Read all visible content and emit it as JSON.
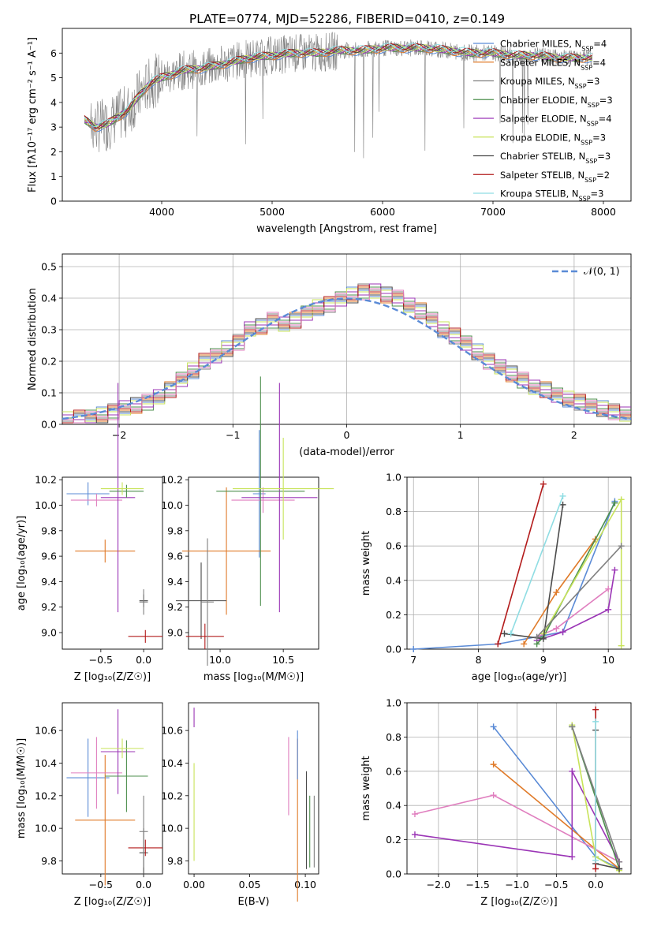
{
  "figure": {
    "title": "PLATE=0774, MJD=52286, FIBERID=0410, z=0.149"
  },
  "colors": {
    "data_spectrum": "#808080",
    "models": [
      "#5b8bd6",
      "#e07b2a",
      "#808080",
      "#4d8f4d",
      "#9b35b6",
      "#c8e35a",
      "#4a4a4a",
      "#b31b1b",
      "#8fdde3"
    ],
    "legend_normal": "#5b8bd6",
    "pink": "#e07fbf"
  },
  "chart_data": [
    {
      "id": "spectrum",
      "type": "line",
      "title": "PLATE=0774, MJD=52286, FIBERID=0410, z=0.149",
      "xlabel": "wavelength [Angstrom, rest frame]",
      "ylabel": "Flux [fλ10⁻¹⁷ erg cm⁻² s⁻¹ A⁻¹]",
      "xlim": [
        3100,
        8250
      ],
      "ylim": [
        0,
        7
      ],
      "xticks": [
        4000,
        5000,
        6000,
        7000,
        8000
      ],
      "yticks": [
        0,
        1,
        2,
        3,
        4,
        5,
        6
      ],
      "grid": false,
      "legend_position": "right",
      "continuum": {
        "x": [
          3300,
          3400,
          3500,
          3600,
          3700,
          3800,
          3900,
          4000,
          4200,
          4400,
          4600,
          4800,
          5000,
          5200,
          5400,
          5600,
          5800,
          6000,
          6200,
          6400,
          6600,
          6800,
          7000,
          7200,
          7400,
          7600,
          7800,
          7900
        ],
        "y": [
          3.3,
          3.0,
          3.1,
          3.4,
          3.7,
          4.3,
          4.8,
          5.0,
          5.3,
          5.4,
          5.6,
          5.8,
          5.9,
          6.0,
          6.0,
          6.1,
          6.1,
          6.2,
          6.2,
          6.2,
          6.1,
          6.0,
          6.0,
          5.9,
          5.9,
          5.8,
          5.8,
          5.8
        ]
      },
      "series": [
        {
          "name": "Chabrier MILES, N_SSP=4"
        },
        {
          "name": "Salpeter MILES, N_SSP=4"
        },
        {
          "name": "Kroupa MILES, N_SSP=3"
        },
        {
          "name": "Chabrier ELODIE, N_SSP=3"
        },
        {
          "name": "Salpeter ELODIE, N_SSP=4"
        },
        {
          "name": "Kroupa ELODIE, N_SSP=3"
        },
        {
          "name": "Chabrier STELIB, N_SSP=3"
        },
        {
          "name": "Salpeter STELIB, N_SSP=2"
        },
        {
          "name": "Kroupa STELIB, N_SSP=3"
        }
      ]
    },
    {
      "id": "residuals",
      "type": "histogram",
      "xlabel": "(data-model)/error",
      "ylabel": "Normed distribution",
      "xlim": [
        -2.5,
        2.5
      ],
      "ylim": [
        0,
        0.54
      ],
      "xticks": [
        -2,
        -1,
        0,
        1,
        2
      ],
      "yticks": [
        0.0,
        0.1,
        0.2,
        0.3,
        0.4,
        0.5
      ],
      "grid": true,
      "legend_position": "upper right",
      "legend": [
        "𝒩(0, 1)"
      ],
      "bin_edges": [
        -2.5,
        -2.4,
        -2.3,
        -2.2,
        -2.1,
        -2.0,
        -1.9,
        -1.8,
        -1.7,
        -1.6,
        -1.5,
        -1.4,
        -1.3,
        -1.2,
        -1.1,
        -1.0,
        -0.9,
        -0.8,
        -0.7,
        -0.6,
        -0.5,
        -0.4,
        -0.3,
        -0.2,
        -0.1,
        0.0,
        0.1,
        0.2,
        0.3,
        0.4,
        0.5,
        0.6,
        0.7,
        0.8,
        0.9,
        1.0,
        1.1,
        1.2,
        1.3,
        1.4,
        1.5,
        1.6,
        1.7,
        1.8,
        1.9,
        2.0,
        2.1,
        2.2,
        2.3,
        2.4,
        2.5
      ],
      "densities": [
        0.015,
        0.02,
        0.025,
        0.03,
        0.04,
        0.05,
        0.06,
        0.07,
        0.09,
        0.11,
        0.14,
        0.17,
        0.2,
        0.22,
        0.24,
        0.26,
        0.3,
        0.31,
        0.33,
        0.32,
        0.33,
        0.35,
        0.37,
        0.38,
        0.4,
        0.41,
        0.42,
        0.42,
        0.41,
        0.4,
        0.38,
        0.36,
        0.33,
        0.3,
        0.28,
        0.26,
        0.23,
        0.2,
        0.18,
        0.16,
        0.14,
        0.12,
        0.11,
        0.09,
        0.08,
        0.07,
        0.06,
        0.05,
        0.04,
        0.03
      ]
    },
    {
      "id": "age-vs-Z",
      "type": "errorbar",
      "xlabel": "Z [log₁₀(Z/Z☉)]",
      "ylabel": "age  [log₁₀(age/yr)]",
      "xlim": [
        -0.95,
        0.22
      ],
      "ylim": [
        8.87,
        10.22
      ],
      "xticks": [
        -0.5,
        0.0
      ],
      "yticks": [
        9.0,
        9.2,
        9.4,
        9.6,
        9.8,
        10.0,
        10.2
      ],
      "grid": false,
      "points": [
        {
          "x": -0.65,
          "xerr": 0.25,
          "y": 10.09,
          "yerr": 0.09,
          "color": 0
        },
        {
          "x": -0.45,
          "xerr": 0.35,
          "y": 9.64,
          "yerr": 0.09,
          "color": 1
        },
        {
          "x": -0.55,
          "xerr": 0.3,
          "y": 10.04,
          "yerr": 0.05,
          "color": 8
        },
        {
          "x": -0.3,
          "xerr": 0.2,
          "y": 10.06,
          "yerr": 0.9,
          "color": 4
        },
        {
          "x": -0.2,
          "xerr": 0.2,
          "y": 10.11,
          "yerr": 0.05,
          "color": 3
        },
        {
          "x": -0.25,
          "xerr": 0.25,
          "y": 10.13,
          "yerr": 0.05,
          "color": 5
        },
        {
          "x": 0.0,
          "xerr": 0.05,
          "y": 9.25,
          "yerr": 0.05,
          "color": 6
        },
        {
          "x": 0.02,
          "xerr": 0.2,
          "y": 8.97,
          "yerr": 0.05,
          "color": 7
        },
        {
          "x": 0.0,
          "xerr": 0.05,
          "y": 9.24,
          "yerr": 0.1,
          "color": 2
        }
      ]
    },
    {
      "id": "age-vs-mass",
      "type": "errorbar",
      "xlabel": "mass [log₁₀(M/M☉)]",
      "ylabel": "",
      "xlim": [
        9.75,
        10.78
      ],
      "ylim": [
        8.87,
        10.22
      ],
      "xticks": [
        10.0,
        10.5
      ],
      "yticks": [
        9.0,
        9.2,
        9.4,
        9.6,
        9.8,
        10.0,
        10.2
      ],
      "grid": false,
      "points": [
        {
          "x": 10.31,
          "xerr": 0.05,
          "y": 10.09,
          "yerr": 0.5,
          "color": 0
        },
        {
          "x": 10.05,
          "xerr": 0.35,
          "y": 9.64,
          "yerr": 0.5,
          "color": 1
        },
        {
          "x": 10.34,
          "xerr": 0.25,
          "y": 10.04,
          "yerr": 0.1,
          "color": 8
        },
        {
          "x": 10.47,
          "xerr": 0.3,
          "y": 10.06,
          "yerr": 0.9,
          "color": 4
        },
        {
          "x": 10.32,
          "xerr": 0.35,
          "y": 10.11,
          "yerr": 0.9,
          "color": 3
        },
        {
          "x": 10.5,
          "xerr": 0.4,
          "y": 10.13,
          "yerr": 0.4,
          "color": 5
        },
        {
          "x": 9.85,
          "xerr": 0.2,
          "y": 9.25,
          "yerr": 0.3,
          "color": 6
        },
        {
          "x": 9.88,
          "xerr": 0.15,
          "y": 8.97,
          "yerr": 0.1,
          "color": 7
        },
        {
          "x": 9.9,
          "xerr": 0.05,
          "y": 9.24,
          "yerr": 0.5,
          "color": 2
        }
      ]
    },
    {
      "id": "weight-vs-age",
      "type": "line",
      "xlabel": "age  [log₁₀(age/yr)]",
      "ylabel": "mass weight",
      "xlim": [
        6.9,
        10.35
      ],
      "ylim": [
        0,
        1.0
      ],
      "xticks": [
        7,
        8,
        9,
        10
      ],
      "yticks": [
        0.0,
        0.2,
        0.4,
        0.6,
        0.8,
        1.0
      ],
      "grid": true,
      "series": [
        {
          "color": 0,
          "x": [
            7.0,
            8.3,
            9.3,
            10.1
          ],
          "y": [
            0.0,
            0.03,
            0.1,
            0.86
          ]
        },
        {
          "color": 1,
          "x": [
            8.7,
            9.2,
            9.8
          ],
          "y": [
            0.03,
            0.33,
            0.64
          ]
        },
        {
          "color": 8,
          "x": [
            8.9,
            9.2,
            10.0
          ],
          "y": [
            0.07,
            0.12,
            0.35
          ]
        },
        {
          "color": 4,
          "x": [
            8.9,
            9.3,
            10.0,
            10.1
          ],
          "y": [
            0.05,
            0.1,
            0.23,
            0.46
          ]
        },
        {
          "color": 3,
          "x": [
            8.9,
            9.0,
            10.1
          ],
          "y": [
            0.03,
            0.07,
            0.85
          ]
        },
        {
          "color": 5,
          "x": [
            9.0,
            10.2,
            10.2
          ],
          "y": [
            0.09,
            0.87,
            0.02
          ]
        },
        {
          "color": 6,
          "x": [
            8.4,
            9.0,
            9.3
          ],
          "y": [
            0.09,
            0.06,
            0.84
          ]
        },
        {
          "color": 7,
          "x": [
            8.3,
            9.0
          ],
          "y": [
            0.03,
            0.96
          ]
        },
        {
          "color": 2,
          "x": [
            8.9,
            10.2
          ],
          "y": [
            0.07,
            0.6
          ]
        },
        {
          "color": 9,
          "x": [
            8.5,
            9.3
          ],
          "y": [
            0.09,
            0.89
          ]
        }
      ]
    },
    {
      "id": "mass-vs-Z",
      "type": "errorbar",
      "xlabel": "Z [log₁₀(Z/Z☉)]",
      "ylabel": "mass [log₁₀(M/M☉)]",
      "xlim": [
        -0.95,
        0.22
      ],
      "ylim": [
        9.72,
        10.77
      ],
      "xticks": [
        -0.5,
        0.0
      ],
      "yticks": [
        9.8,
        10.0,
        10.2,
        10.4,
        10.6
      ],
      "grid": false,
      "points": [
        {
          "x": -0.65,
          "xerr": 0.25,
          "y": 10.31,
          "yerr": 0.24,
          "color": 0
        },
        {
          "x": -0.45,
          "xerr": 0.35,
          "y": 10.05,
          "yerr": 0.4,
          "color": 1
        },
        {
          "x": -0.55,
          "xerr": 0.3,
          "y": 10.34,
          "yerr": 0.22,
          "color": 8
        },
        {
          "x": -0.3,
          "xerr": 0.2,
          "y": 10.47,
          "yerr": 0.26,
          "color": 4
        },
        {
          "x": -0.2,
          "xerr": 0.25,
          "y": 10.32,
          "yerr": 0.22,
          "color": 3
        },
        {
          "x": -0.25,
          "xerr": 0.25,
          "y": 10.49,
          "yerr": 0.06,
          "color": 5
        },
        {
          "x": 0.0,
          "xerr": 0.05,
          "y": 9.85,
          "yerr": 0.15,
          "color": 6
        },
        {
          "x": 0.02,
          "xerr": 0.2,
          "y": 9.88,
          "yerr": 0.05,
          "color": 7
        },
        {
          "x": 0.0,
          "xerr": 0.05,
          "y": 9.98,
          "yerr": 0.22,
          "color": 2
        }
      ]
    },
    {
      "id": "mass-vs-ebv",
      "type": "errorbar",
      "xlabel": "E(B-V)",
      "ylabel": "",
      "xlim": [
        -0.005,
        0.112
      ],
      "ylim": [
        9.72,
        10.77
      ],
      "xticks": [
        0.0,
        0.05,
        0.1
      ],
      "yticks": [
        9.8,
        10.0,
        10.2,
        10.4,
        10.6
      ],
      "grid": false,
      "points": [
        {
          "x": 0.0,
          "xerr": 0.0,
          "y": 10.1,
          "yerr": 0.3,
          "color": 5
        },
        {
          "x": 0.0,
          "xerr": 0.0,
          "y": 10.68,
          "yerr": 0.06,
          "color": 4
        },
        {
          "x": 0.085,
          "xerr": 0.0,
          "y": 10.32,
          "yerr": 0.24,
          "color": 8
        },
        {
          "x": 0.093,
          "xerr": 0.0,
          "y": 10.05,
          "yerr": 0.5,
          "color": 1
        },
        {
          "x": 0.093,
          "xerr": 0.0,
          "y": 10.45,
          "yerr": 0.15,
          "color": 0
        },
        {
          "x": 0.101,
          "xerr": 0.0,
          "y": 10.05,
          "yerr": 0.3,
          "color": 6
        },
        {
          "x": 0.104,
          "xerr": 0.0,
          "y": 9.98,
          "yerr": 0.22,
          "color": 3
        },
        {
          "x": 0.108,
          "xerr": 0.0,
          "y": 9.98,
          "yerr": 0.22,
          "color": 2
        }
      ]
    },
    {
      "id": "weight-vs-Z",
      "type": "line",
      "xlabel": "Z [log₁₀(Z/Z☉)]",
      "ylabel": "mass weight",
      "xlim": [
        -2.4,
        0.45
      ],
      "ylim": [
        0,
        1.0
      ],
      "xticks": [
        -2.0,
        -1.5,
        -1.0,
        -0.5,
        0.0
      ],
      "yticks": [
        0.0,
        0.2,
        0.4,
        0.6,
        0.8,
        1.0
      ],
      "grid": true,
      "series": [
        {
          "color": 0,
          "x": [
            -1.3,
            0.0,
            0.3
          ],
          "y": [
            0.86,
            0.1,
            0.03
          ]
        },
        {
          "color": 1,
          "x": [
            -1.3,
            0.3
          ],
          "y": [
            0.64,
            0.03
          ]
        },
        {
          "color": 8,
          "x": [
            -2.3,
            -1.3,
            0.3
          ],
          "y": [
            0.35,
            0.46,
            0.07
          ]
        },
        {
          "color": 4,
          "x": [
            -2.3,
            -0.3,
            -0.3,
            0.3,
            0.3
          ],
          "y": [
            0.23,
            0.1,
            0.6,
            0.07,
            0.03
          ]
        },
        {
          "color": 3,
          "x": [
            -0.3,
            0.3
          ],
          "y": [
            0.86,
            0.03
          ]
        },
        {
          "color": 5,
          "x": [
            -0.3,
            0.0,
            0.3
          ],
          "y": [
            0.87,
            0.1,
            0.02
          ]
        },
        {
          "color": 6,
          "x": [
            0.0,
            0.0,
            0.3
          ],
          "y": [
            0.84,
            0.06,
            0.03
          ]
        },
        {
          "color": 7,
          "x": [
            0.0,
            0.0
          ],
          "y": [
            0.96,
            0.03
          ]
        },
        {
          "color": 2,
          "x": [
            -0.3,
            0.3
          ],
          "y": [
            0.86,
            0.07
          ]
        },
        {
          "color": 9,
          "x": [
            0.0,
            0.0
          ],
          "y": [
            0.89,
            0.08
          ]
        }
      ]
    }
  ]
}
